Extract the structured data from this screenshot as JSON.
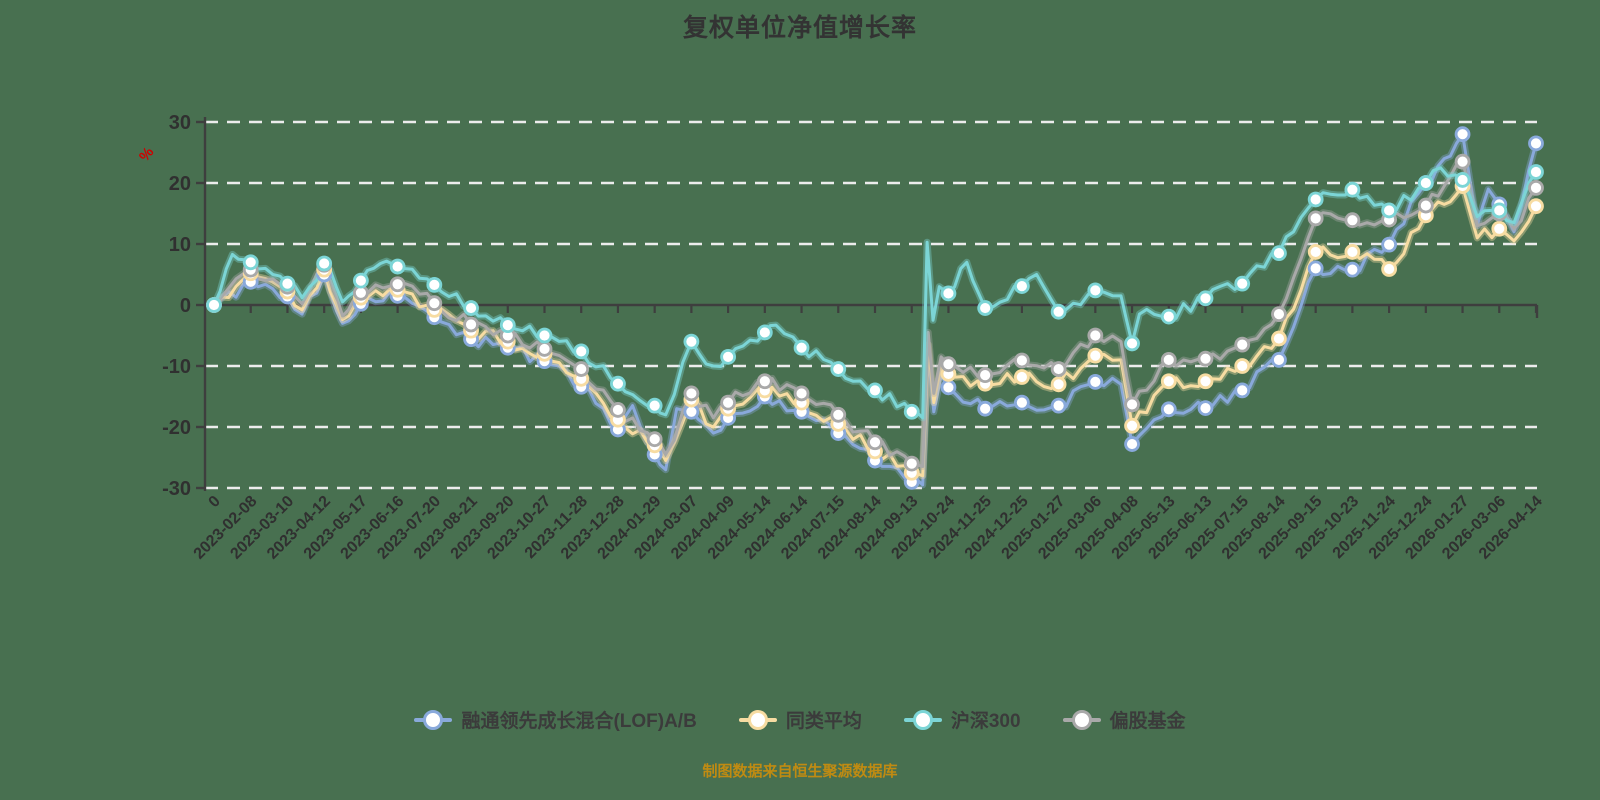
{
  "page": {
    "background": "#487050"
  },
  "header": {
    "title": "复权单位净值增长率"
  },
  "footer": {
    "note": "制图数据来自恒生聚源数据库"
  },
  "colors": {
    "title": "#333333",
    "axis": "#3e3e3e",
    "tick_label": "#303030",
    "grid": "#ececec",
    "unit_label": "#D10000",
    "footer_note": "#C08B12",
    "marker_fill": "#ffffff"
  },
  "chart_data": {
    "type": "line",
    "title": "复权单位净值增长率",
    "unit_label": "%",
    "xlabel": "",
    "ylabel": "",
    "ylim": [
      -30,
      30
    ],
    "y_ticks": [
      30,
      20,
      10,
      0,
      -10,
      -20,
      -30
    ],
    "grid": "horizontal-dashed",
    "legend_position": "bottom",
    "categories": [
      "0",
      "2023-02-08",
      "2023-03-10",
      "2023-04-12",
      "2023-05-17",
      "2023-06-16",
      "2023-07-20",
      "2023-08-21",
      "2023-09-20",
      "2023-10-27",
      "2023-11-28",
      "2023-12-28",
      "2024-01-29",
      "2024-03-07",
      "2024-04-09",
      "2024-05-14",
      "2024-06-14",
      "2024-07-15",
      "2024-08-14",
      "2024-09-13",
      "2024-10-24",
      "2024-11-25",
      "2024-12-25",
      "2025-01-27",
      "2025-03-06",
      "2025-04-08",
      "2025-05-13",
      "2025-06-13",
      "2025-07-15",
      "2025-08-14",
      "2025-09-15",
      "2025-10-23",
      "2025-11-24",
      "2025-12-24",
      "2026-01-27",
      "2026-03-06",
      "2026-04-14"
    ],
    "series": [
      {
        "name": "融通领先成长混合(LOF)A/B",
        "color": "#89A9DB",
        "values": [
          0,
          3.8,
          1.4,
          5.0,
          0.2,
          1.5,
          -2.0,
          -5.6,
          -7.0,
          -9.2,
          -13.4,
          -20.4,
          -24.5,
          -17.5,
          -18.5,
          -15.0,
          -17.5,
          -21.0,
          -25.5,
          -29.0,
          -13.5,
          -17.0,
          -16.0,
          -16.5,
          -12.6,
          -22.8,
          -17.1,
          -16.9,
          -14.0,
          -9.0,
          6.0,
          5.8,
          9.9,
          20.0,
          28.0,
          16.5,
          26.5
        ],
        "detail_points": [
          [
            2.4,
            -1.5
          ],
          [
            3.5,
            -3.0
          ],
          [
            11.4,
            -16.5
          ],
          [
            12.3,
            -27.0
          ],
          [
            12.6,
            -17.0
          ],
          [
            13.6,
            -21.0
          ],
          [
            19.3,
            -29.5
          ],
          [
            19.45,
            -8.0
          ],
          [
            19.6,
            -17.5
          ],
          [
            19.8,
            -11.5
          ],
          [
            24.7,
            -13.0
          ],
          [
            33.5,
            24.0
          ],
          [
            34.4,
            13.0
          ],
          [
            34.7,
            19.0
          ],
          [
            35.4,
            12.0
          ]
        ]
      },
      {
        "name": "同类平均",
        "color": "#F7DCA2",
        "values": [
          0,
          5.2,
          2.2,
          5.8,
          1.2,
          2.5,
          -0.8,
          -4.2,
          -6.0,
          -8.0,
          -12.1,
          -18.8,
          -23.0,
          -15.5,
          -17.0,
          -14.0,
          -16.0,
          -19.5,
          -24.0,
          -27.5,
          -11.3,
          -12.9,
          -11.8,
          -13.0,
          -8.3,
          -19.8,
          -12.5,
          -12.5,
          -10.0,
          -5.5,
          8.7,
          8.7,
          5.9,
          14.7,
          19.5,
          12.5,
          16.2
        ],
        "detail_points": [
          [
            2.4,
            -0.8
          ],
          [
            3.5,
            -2.4
          ],
          [
            12.3,
            -25.5
          ],
          [
            13.6,
            -20.0
          ],
          [
            19.3,
            -28.0
          ],
          [
            19.45,
            -6.5
          ],
          [
            19.6,
            -16.0
          ],
          [
            19.8,
            -10.0
          ],
          [
            24.7,
            -9.0
          ],
          [
            33.5,
            16.5
          ],
          [
            34.4,
            11.0
          ],
          [
            35.4,
            10.5
          ]
        ]
      },
      {
        "name": "沪深300",
        "color": "#7CD5D6",
        "values": [
          0,
          7.0,
          3.5,
          6.8,
          4.0,
          6.3,
          3.3,
          -0.5,
          -3.3,
          -5.0,
          -7.6,
          -12.9,
          -16.5,
          -6.0,
          -8.5,
          -4.5,
          -7.0,
          -10.5,
          -14.0,
          -17.5,
          1.9,
          -0.5,
          3.1,
          -1.1,
          2.4,
          -6.3,
          -1.9,
          1.1,
          3.5,
          8.5,
          17.3,
          18.9,
          15.5,
          20.0,
          20.5,
          15.5,
          21.8
        ],
        "detail_points": [
          [
            0.5,
            8.3
          ],
          [
            2.4,
            1.2
          ],
          [
            3.5,
            0.5
          ],
          [
            4.7,
            7.2
          ],
          [
            12.3,
            -18.0
          ],
          [
            13.6,
            -10.0
          ],
          [
            15.3,
            -3.3
          ],
          [
            19.3,
            -18.5
          ],
          [
            19.42,
            10.3
          ],
          [
            19.58,
            -2.5
          ],
          [
            19.75,
            3.0
          ],
          [
            20.5,
            7.0
          ],
          [
            22.4,
            5.0
          ],
          [
            24.7,
            1.5
          ],
          [
            25.2,
            -1.5
          ],
          [
            33.4,
            22.5
          ],
          [
            34.4,
            14.5
          ],
          [
            35.4,
            13.5
          ]
        ]
      },
      {
        "name": "偏股基金",
        "color": "#A9A9A9",
        "values": [
          0,
          5.8,
          3.0,
          6.6,
          2.0,
          3.4,
          0.3,
          -3.2,
          -5.0,
          -7.2,
          -10.5,
          -17.2,
          -22.0,
          -14.5,
          -16.0,
          -12.5,
          -14.5,
          -18.0,
          -22.5,
          -26.0,
          -9.7,
          -11.5,
          -9.1,
          -10.5,
          -5.0,
          -16.3,
          -9.0,
          -8.8,
          -6.5,
          -1.5,
          14.2,
          13.9,
          14.0,
          16.3,
          23.5,
          15.0,
          19.2
        ],
        "detail_points": [
          [
            2.4,
            0.2
          ],
          [
            3.5,
            -1.8
          ],
          [
            12.3,
            -24.5
          ],
          [
            13.6,
            -18.5
          ],
          [
            19.3,
            -26.5
          ],
          [
            19.45,
            -4.5
          ],
          [
            19.6,
            -14.5
          ],
          [
            19.8,
            -8.5
          ],
          [
            24.7,
            -6.0
          ],
          [
            33.5,
            19.5
          ],
          [
            34.4,
            13.0
          ],
          [
            35.4,
            12.5
          ]
        ]
      }
    ]
  }
}
